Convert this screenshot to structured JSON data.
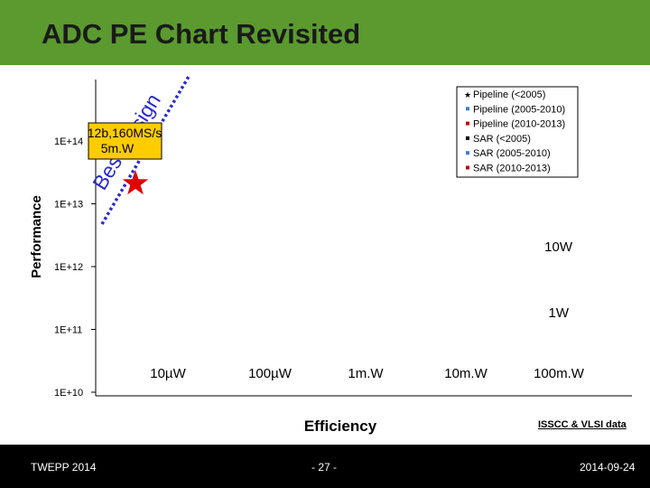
{
  "slide": {
    "title": "ADC PE Chart Revisited",
    "footer_left": "TWEPP 2014",
    "footer_center": "- 27 -",
    "footer_right": "2014-09-24",
    "source_note": "ISSCC & VLSI data"
  },
  "colors": {
    "title_bar": "#5a9a2e",
    "footer_bar": "#000000",
    "best_design_line": "#2a2ad0",
    "star": "#e00000",
    "pipeline_marker": "#000000",
    "sar_marker": "#3a7fd0",
    "recent_marker": "#c00000"
  },
  "chart_data": {
    "type": "scatter",
    "title": "",
    "xlabel": "Efficiency",
    "ylabel": "Performance",
    "y_scale": "log",
    "y_ticks": [
      "1E+10",
      "1E+11",
      "1E+12",
      "1E+13",
      "1E+14"
    ],
    "x_tick_labels": [
      "10µW",
      "100µW",
      "1m.W",
      "10m.W",
      "100m.W"
    ],
    "power_line_labels": [
      "10W",
      "1W"
    ],
    "series": [
      {
        "name": "Pipeline (<2005)",
        "marker": "star",
        "color": "#000000",
        "points": []
      },
      {
        "name": "Pipeline (2005-2010)",
        "marker": "square",
        "color": "#3a7fd0",
        "points": []
      },
      {
        "name": "Pipeline (2010-2013)",
        "marker": "square",
        "color": "#c00000",
        "points": []
      },
      {
        "name": "SAR (<2005)",
        "marker": "square",
        "color": "#000000",
        "points": []
      },
      {
        "name": "SAR (2005-2010)",
        "marker": "square",
        "color": "#3a7fd0",
        "points": []
      },
      {
        "name": "SAR (2010-2013)",
        "marker": "square",
        "color": "#c00000",
        "points": []
      }
    ],
    "callout": {
      "line1": "12b,160MS/s",
      "line2": "5m.W"
    },
    "best_design_label": "Best design",
    "grid": false,
    "legend_position": "top-right"
  }
}
